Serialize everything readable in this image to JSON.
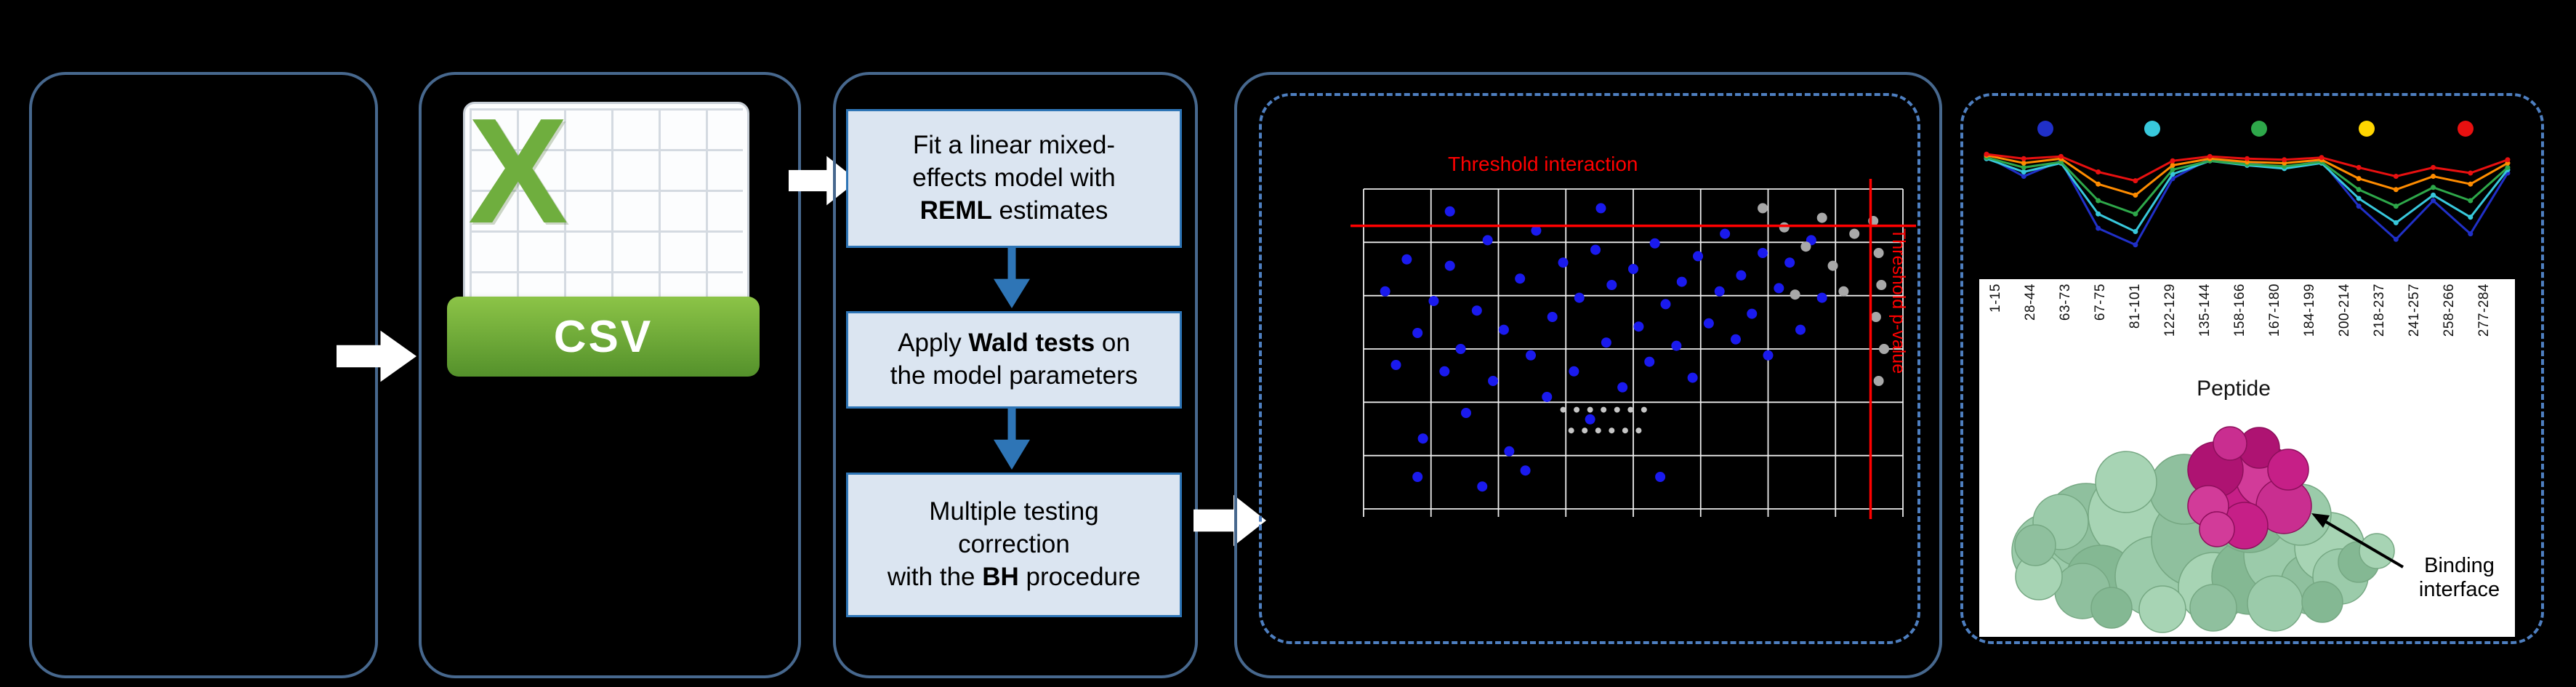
{
  "colors": {
    "background": "#000000",
    "panel_border": "#47688e",
    "dashed_border": "#4e7fc0",
    "box_fill": "#dbe5f1",
    "box_border": "#2e75b6",
    "arrow_white": "#ffffff",
    "arrow_blue": "#2e75b6",
    "threshold_red": "#ff0000",
    "point_blue": "#1a1aee",
    "point_gray": "#a8a8a8",
    "csv_green": "#6fae3e"
  },
  "csv_icon": {
    "x_letter": "X",
    "banner_label": "CSV"
  },
  "flow_steps": [
    {
      "segments": [
        {
          "t": "Fit a linear mixed-\neffects model with\n"
        },
        {
          "t": "REML",
          "b": true
        },
        {
          "t": " estimates"
        }
      ]
    },
    {
      "segments": [
        {
          "t": "Apply "
        },
        {
          "t": "Wald tests",
          "b": true
        },
        {
          "t": " on\nthe model parameters"
        }
      ]
    },
    {
      "segments": [
        {
          "t": "Multiple testing\ncorrection\nwith the "
        },
        {
          "t": "BH",
          "b": true
        },
        {
          "t": " procedure"
        }
      ]
    }
  ],
  "annotation": {
    "binding_label": "Binding interface"
  },
  "chart_data": [
    {
      "type": "scatter",
      "title": "Threshold interaction",
      "right_label": "Threshold p-value",
      "grid": {
        "cols": 8,
        "rows": 6,
        "color": "#ececec"
      },
      "threshold_color": "#ff0000",
      "thresholds": {
        "horizontal_y_frac": 0.115,
        "vertical_x_frac": 0.94
      },
      "series": [
        {
          "name": "blue-points",
          "color": "#1a1aee",
          "r": 7,
          "points": [
            [
              0.04,
              0.32
            ],
            [
              0.06,
              0.55
            ],
            [
              0.08,
              0.22
            ],
            [
              0.1,
              0.45
            ],
            [
              0.11,
              0.78
            ],
            [
              0.13,
              0.35
            ],
            [
              0.15,
              0.57
            ],
            [
              0.16,
              0.24
            ],
            [
              0.18,
              0.5
            ],
            [
              0.19,
              0.7
            ],
            [
              0.21,
              0.38
            ],
            [
              0.23,
              0.16
            ],
            [
              0.24,
              0.6
            ],
            [
              0.26,
              0.44
            ],
            [
              0.27,
              0.82
            ],
            [
              0.29,
              0.28
            ],
            [
              0.31,
              0.52
            ],
            [
              0.32,
              0.13
            ],
            [
              0.34,
              0.65
            ],
            [
              0.35,
              0.4
            ],
            [
              0.37,
              0.23
            ],
            [
              0.39,
              0.57
            ],
            [
              0.4,
              0.34
            ],
            [
              0.42,
              0.72
            ],
            [
              0.43,
              0.19
            ],
            [
              0.45,
              0.48
            ],
            [
              0.46,
              0.3
            ],
            [
              0.48,
              0.62
            ],
            [
              0.5,
              0.25
            ],
            [
              0.51,
              0.43
            ],
            [
              0.53,
              0.54
            ],
            [
              0.54,
              0.17
            ],
            [
              0.56,
              0.36
            ],
            [
              0.58,
              0.49
            ],
            [
              0.59,
              0.29
            ],
            [
              0.61,
              0.59
            ],
            [
              0.62,
              0.21
            ],
            [
              0.64,
              0.42
            ],
            [
              0.66,
              0.32
            ],
            [
              0.67,
              0.14
            ],
            [
              0.69,
              0.47
            ],
            [
              0.7,
              0.27
            ],
            [
              0.72,
              0.39
            ],
            [
              0.74,
              0.2
            ],
            [
              0.75,
              0.52
            ],
            [
              0.77,
              0.31
            ],
            [
              0.79,
              0.23
            ],
            [
              0.81,
              0.44
            ],
            [
              0.83,
              0.16
            ],
            [
              0.85,
              0.34
            ],
            [
              0.44,
              0.06
            ],
            [
              0.16,
              0.07
            ],
            [
              0.3,
              0.88
            ],
            [
              0.55,
              0.9
            ],
            [
              0.1,
              0.9
            ],
            [
              0.22,
              0.93
            ]
          ]
        },
        {
          "name": "gray-points",
          "color": "#a8a8a8",
          "r": 7,
          "points": [
            [
              0.74,
              0.06
            ],
            [
              0.78,
              0.12
            ],
            [
              0.82,
              0.18
            ],
            [
              0.85,
              0.09
            ],
            [
              0.87,
              0.24
            ],
            [
              0.89,
              0.32
            ],
            [
              0.91,
              0.14
            ],
            [
              0.945,
              0.1
            ],
            [
              0.955,
              0.2
            ],
            [
              0.96,
              0.3
            ],
            [
              0.95,
              0.4
            ],
            [
              0.965,
              0.5
            ],
            [
              0.955,
              0.6
            ],
            [
              0.8,
              0.33
            ]
          ]
        },
        {
          "name": "small-gray-cluster",
          "color": "#c6c6c6",
          "r": 4,
          "points": [
            [
              0.37,
              0.69
            ],
            [
              0.395,
              0.69
            ],
            [
              0.42,
              0.69
            ],
            [
              0.445,
              0.69
            ],
            [
              0.47,
              0.69
            ],
            [
              0.495,
              0.69
            ],
            [
              0.52,
              0.69
            ],
            [
              0.385,
              0.755
            ],
            [
              0.41,
              0.755
            ],
            [
              0.435,
              0.755
            ],
            [
              0.46,
              0.755
            ],
            [
              0.485,
              0.755
            ],
            [
              0.51,
              0.755
            ]
          ]
        }
      ]
    },
    {
      "type": "line",
      "xlabel": "Peptide",
      "ylim": [
        0,
        1
      ],
      "x_labels": [
        "1-15",
        "28-44",
        "63-73",
        "67-75",
        "81-101",
        "122-129",
        "135-144",
        "158-166",
        "167-180",
        "184-199",
        "200-214",
        "218-237",
        "241-257",
        "258-266",
        "277-284"
      ],
      "legend_dot_colors": [
        "#2030c8",
        "#38c8dc",
        "#2ea84a",
        "#ffd500",
        "#e81010"
      ],
      "legend_dot_pos": [
        0.123,
        0.323,
        0.523,
        0.723,
        0.908
      ],
      "series": [
        {
          "name": "series-blue",
          "color": "#2030c8",
          "values": [
            0.9,
            0.72,
            0.86,
            0.25,
            0.1,
            0.7,
            0.88,
            0.84,
            0.8,
            0.86,
            0.45,
            0.15,
            0.5,
            0.2,
            0.75
          ]
        },
        {
          "name": "series-cyan",
          "color": "#38c8dc",
          "values": [
            0.88,
            0.76,
            0.84,
            0.38,
            0.22,
            0.74,
            0.86,
            0.82,
            0.79,
            0.84,
            0.52,
            0.3,
            0.55,
            0.35,
            0.78
          ]
        },
        {
          "name": "series-green",
          "color": "#2ea84a",
          "values": [
            0.89,
            0.8,
            0.85,
            0.5,
            0.38,
            0.78,
            0.86,
            0.83,
            0.81,
            0.85,
            0.6,
            0.45,
            0.62,
            0.5,
            0.8
          ]
        },
        {
          "name": "series-orange",
          "color": "#ff8c00",
          "values": [
            0.91,
            0.84,
            0.88,
            0.65,
            0.55,
            0.82,
            0.88,
            0.85,
            0.84,
            0.87,
            0.7,
            0.6,
            0.72,
            0.65,
            0.84
          ]
        },
        {
          "name": "series-red",
          "color": "#e81010",
          "values": [
            0.92,
            0.88,
            0.9,
            0.76,
            0.68,
            0.86,
            0.9,
            0.88,
            0.87,
            0.89,
            0.8,
            0.72,
            0.8,
            0.75,
            0.87
          ]
        }
      ]
    }
  ]
}
